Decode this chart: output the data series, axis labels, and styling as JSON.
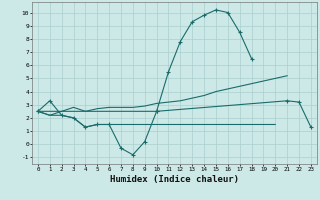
{
  "xlabel": "Humidex (Indice chaleur)",
  "x_values": [
    0,
    1,
    2,
    3,
    4,
    5,
    6,
    7,
    8,
    9,
    10,
    11,
    12,
    13,
    14,
    15,
    16,
    17,
    18,
    19,
    20,
    21,
    22,
    23
  ],
  "line1": [
    2.5,
    3.3,
    2.2,
    2.0,
    1.3,
    1.5,
    1.5,
    -0.3,
    -0.8,
    0.2,
    2.5,
    5.5,
    7.8,
    9.3,
    9.8,
    10.2,
    10.0,
    8.5,
    6.5,
    null,
    null,
    null,
    null,
    null
  ],
  "line2": [
    2.5,
    2.2,
    2.5,
    2.8,
    2.5,
    2.7,
    2.8,
    2.8,
    2.8,
    2.9,
    3.1,
    3.2,
    3.3,
    3.5,
    3.7,
    4.0,
    4.2,
    4.4,
    4.6,
    4.8,
    5.0,
    5.2,
    null,
    null
  ],
  "line3": [
    2.5,
    2.2,
    2.2,
    2.0,
    1.3,
    1.5,
    1.5,
    1.5,
    1.5,
    1.5,
    1.5,
    1.5,
    1.5,
    1.5,
    1.5,
    1.5,
    1.5,
    1.5,
    1.5,
    1.5,
    1.5,
    null,
    null,
    null
  ],
  "line4": [
    2.5,
    null,
    null,
    null,
    null,
    null,
    null,
    null,
    null,
    null,
    2.5,
    null,
    null,
    null,
    null,
    null,
    null,
    null,
    null,
    null,
    null,
    3.3,
    3.2,
    1.3
  ],
  "bg_color": "#cce9e7",
  "grid_color": "#aacfcc",
  "line_color": "#1a6b6b",
  "ylim": [
    -1.5,
    10.8
  ],
  "xlim": [
    -0.5,
    23.5
  ]
}
